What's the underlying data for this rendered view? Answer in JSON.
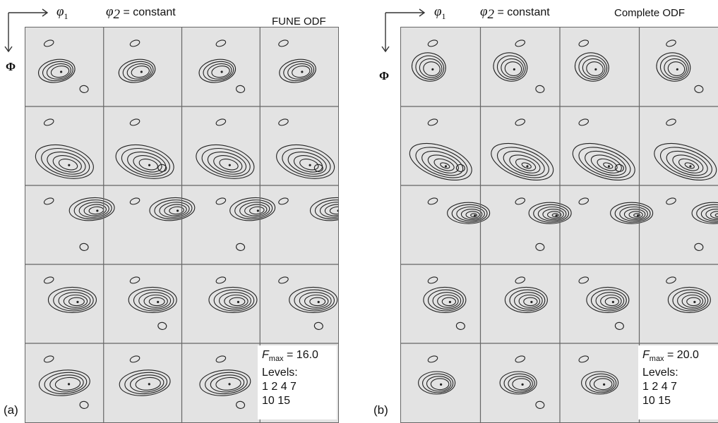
{
  "panels": [
    {
      "id": "a",
      "phi1": "φ",
      "phi1_sub": "1",
      "phi2": "φ",
      "phi2_sub": "2",
      "phi2_rest": " = constant",
      "Phi": "Φ",
      "title": "FUNE ODF",
      "fmax_F": "F",
      "fmax_sub": "max",
      "fmax_value": " = 16.0",
      "levels_label": "Levels:",
      "levels_line1": "1 2 4 7",
      "levels_line2": "10 15",
      "tag": "(a)"
    },
    {
      "id": "b",
      "phi1": "φ",
      "phi1_sub": "1",
      "phi2": "φ",
      "phi2_sub": "2",
      "phi2_rest": " = constant",
      "Phi": "Φ",
      "title": "Complete ODF",
      "fmax_F": "F",
      "fmax_sub": "max",
      "fmax_value": " = 20.0",
      "levels_label": "Levels:",
      "levels_line1": "1 2 4 7",
      "levels_line2": "10 15",
      "tag": "(b)"
    }
  ],
  "colors": {
    "cell_fill": "#e3e3e3",
    "grid_line": "#666666",
    "contour": "#222222"
  }
}
